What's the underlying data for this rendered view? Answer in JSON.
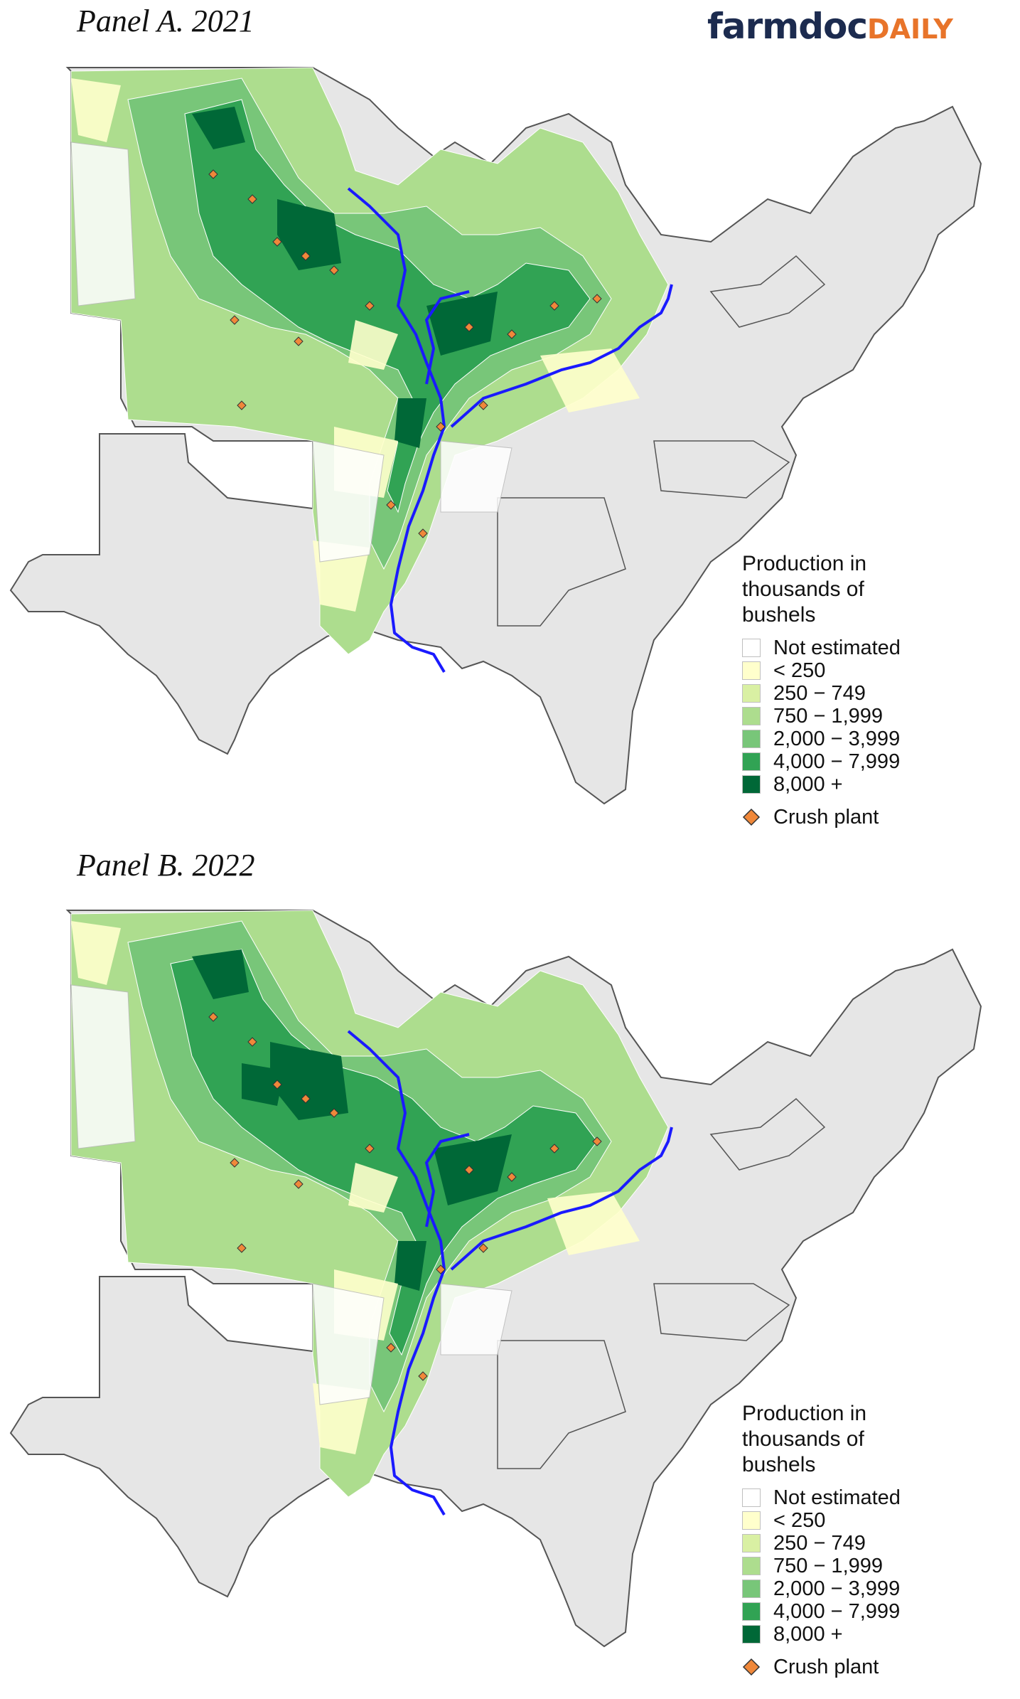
{
  "brand": {
    "part1": "farmdoc",
    "part2": "DAILY"
  },
  "colors": {
    "not_estimated": "#ffffff",
    "lt250": "#ffffcc",
    "c250_749": "#d9f0a3",
    "c750_1999": "#addd8e",
    "c2000_3999": "#78c679",
    "c4000_7999": "#31a354",
    "c8000": "#006837",
    "crush": "#f0883a",
    "river": "#1a1aff",
    "state_grey": "#e6e6e6"
  },
  "panels": [
    {
      "title": "Panel A. 2021",
      "legend": {
        "title": "Production in thousands of bushels",
        "items": [
          "Not estimated",
          "< 250",
          "250 − 749",
          "750 − 1,999",
          "2,000 − 3,999",
          "4,000 − 7,999",
          "8,000 +"
        ],
        "crush_label": "Crush plant"
      }
    },
    {
      "title": "Panel B. 2022",
      "legend": {
        "title": "Production in thousands of bushels",
        "items": [
          "Not estimated",
          "< 250",
          "250 − 749",
          "750 − 1,999",
          "2,000 − 3,999",
          "4,000 − 7,999",
          "8,000 +"
        ],
        "crush_label": "Crush plant"
      }
    }
  ]
}
